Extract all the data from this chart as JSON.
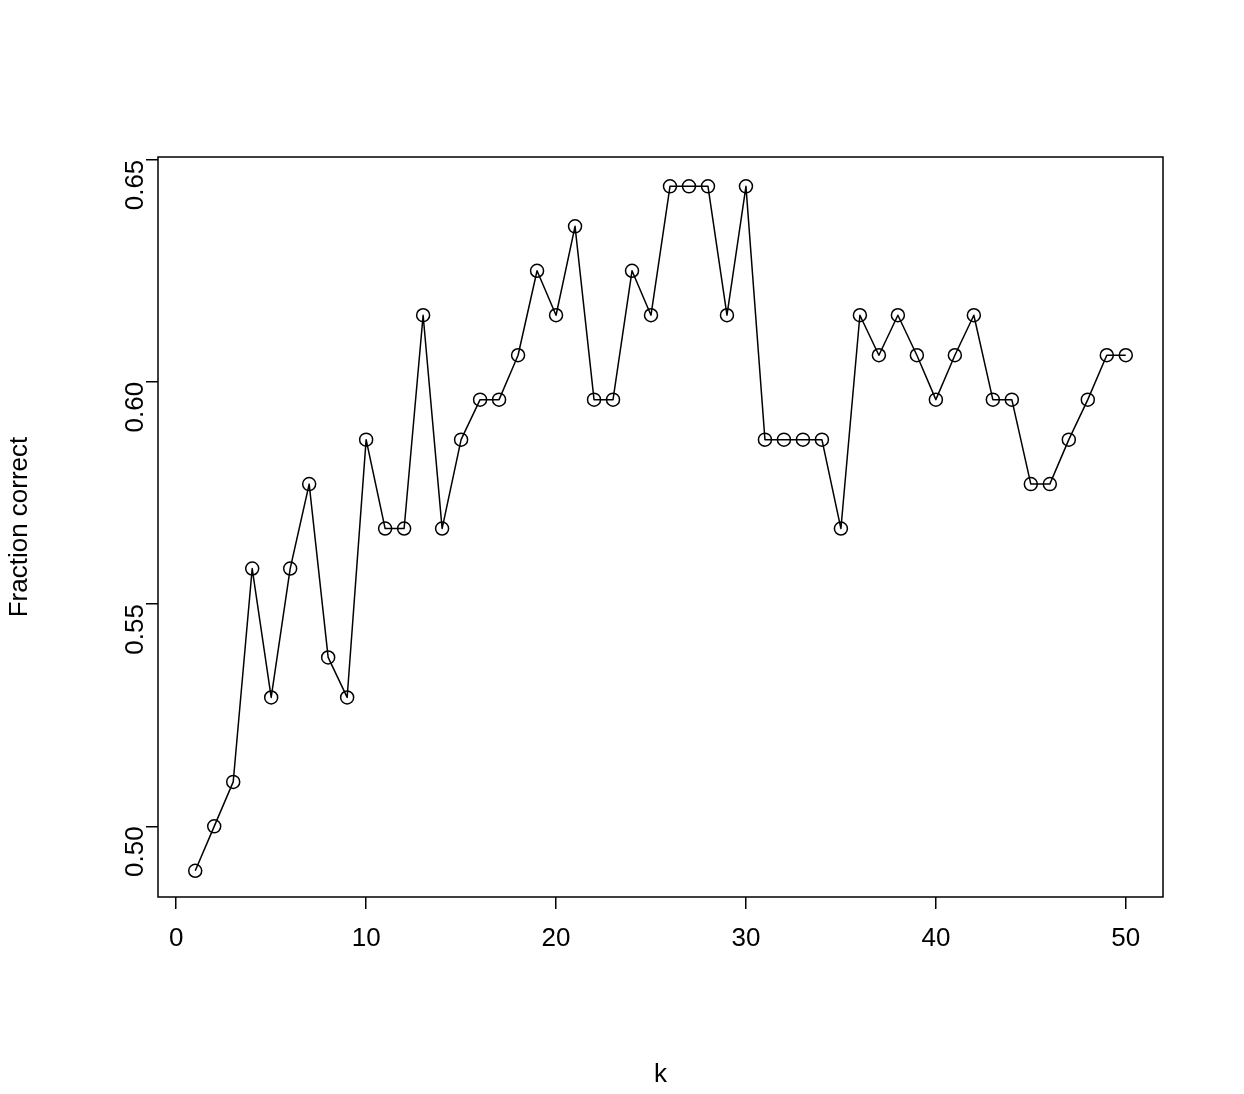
{
  "chart_data": {
    "type": "line",
    "xlabel": "k",
    "ylabel": "Fraction correct",
    "x": [
      1,
      2,
      3,
      4,
      5,
      6,
      7,
      8,
      9,
      10,
      11,
      12,
      13,
      14,
      15,
      16,
      17,
      18,
      19,
      20,
      21,
      22,
      23,
      24,
      25,
      26,
      27,
      28,
      29,
      30,
      31,
      32,
      33,
      34,
      35,
      36,
      37,
      38,
      39,
      40,
      41,
      42,
      43,
      44,
      45,
      46,
      47,
      48,
      49,
      50
    ],
    "series": [
      {
        "color": "#000000",
        "values": [
          0.49,
          0.5,
          0.51,
          0.558,
          0.529,
          0.558,
          0.577,
          0.538,
          0.529,
          0.587,
          0.567,
          0.567,
          0.615,
          0.567,
          0.587,
          0.596,
          0.596,
          0.606,
          0.625,
          0.615,
          0.635,
          0.596,
          0.596,
          0.625,
          0.615,
          0.644,
          0.644,
          0.644,
          0.615,
          0.644,
          0.587,
          0.587,
          0.587,
          0.587,
          0.567,
          0.615,
          0.606,
          0.615,
          0.606,
          0.596,
          0.606,
          0.615,
          0.596,
          0.596,
          0.577,
          0.577,
          0.587,
          0.596,
          0.606,
          0.606
        ]
      }
    ],
    "xlim": [
      -0.96,
      51.96
    ],
    "ylim": [
      0.4841,
      0.6506
    ],
    "xticks": [
      0,
      10,
      20,
      30,
      40,
      50
    ],
    "yticks": [
      {
        "value": 0.5,
        "label": "0.50"
      },
      {
        "value": 0.55,
        "label": "0.55"
      },
      {
        "value": 0.6,
        "label": "0.60"
      },
      {
        "value": 0.65,
        "label": "0.65"
      }
    ],
    "grid": false,
    "legend": false,
    "marker": "circle",
    "line_style": "solid"
  }
}
